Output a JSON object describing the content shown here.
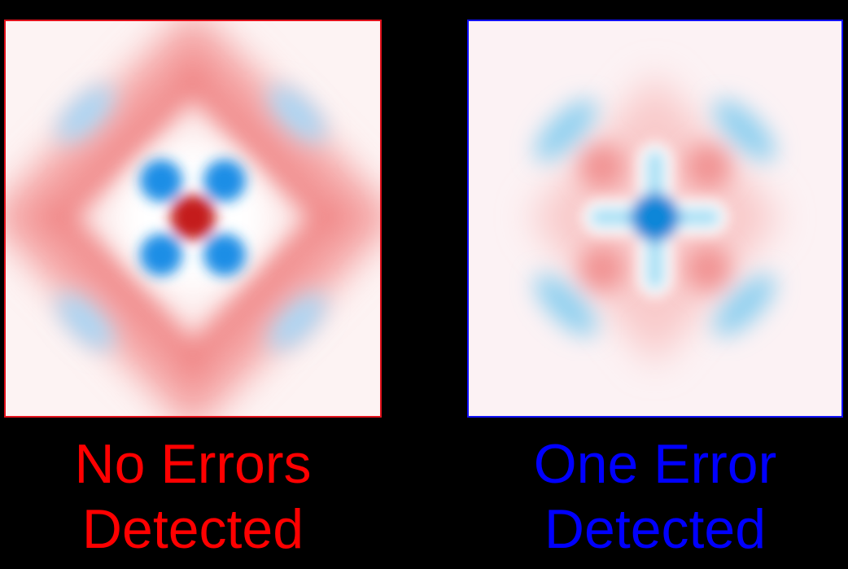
{
  "panels": [
    {
      "caption_line1": "No Errors",
      "caption_line2": "Detected",
      "color": "#ff0000"
    },
    {
      "caption_line1": "One Error",
      "caption_line2": "Detected",
      "color": "#0000ff"
    }
  ],
  "colors": {
    "positive": "#e84a4a",
    "negative": "#1a8fe0",
    "background": "#000000"
  }
}
